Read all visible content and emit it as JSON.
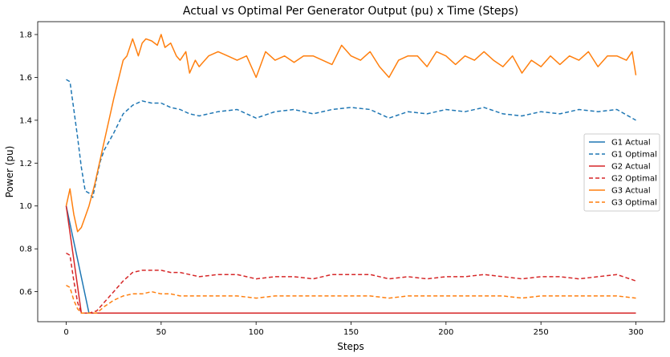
{
  "chart_data": {
    "type": "line",
    "title": "Actual vs Optimal Per Generator Output (pu) x Time (Steps)",
    "xlabel": "Steps",
    "ylabel": "Power (pu)",
    "xlim": [
      -15,
      315
    ],
    "ylim": [
      0.46,
      1.86
    ],
    "xticks": [
      0,
      50,
      100,
      150,
      200,
      250,
      300
    ],
    "yticks": [
      0.6,
      0.8,
      1.0,
      1.2,
      1.4,
      1.6,
      1.8
    ],
    "xtick_labels": [
      "0",
      "50",
      "100",
      "150",
      "200",
      "250",
      "300"
    ],
    "ytick_labels": [
      "0.6",
      "0.8",
      "1.0",
      "1.2",
      "1.4",
      "1.6",
      "1.8"
    ],
    "grid": false,
    "legend_position": "right",
    "series": [
      {
        "name": "G1 Actual",
        "color": "#1f77b4",
        "style": "solid",
        "x": [
          0,
          12,
          300
        ],
        "y": [
          1.0,
          0.5,
          0.5
        ]
      },
      {
        "name": "G1 Optimal",
        "color": "#1f77b4",
        "style": "dashed",
        "x": [
          0,
          2,
          4,
          6,
          8,
          10,
          12,
          14,
          16,
          18,
          20,
          25,
          30,
          35,
          40,
          45,
          50,
          55,
          60,
          65,
          70,
          80,
          90,
          100,
          110,
          120,
          130,
          140,
          150,
          160,
          170,
          180,
          190,
          200,
          210,
          220,
          230,
          240,
          250,
          260,
          270,
          280,
          290,
          300
        ],
        "y": [
          1.59,
          1.58,
          1.45,
          1.32,
          1.18,
          1.07,
          1.06,
          1.04,
          1.13,
          1.21,
          1.26,
          1.34,
          1.43,
          1.47,
          1.49,
          1.48,
          1.48,
          1.46,
          1.45,
          1.43,
          1.42,
          1.44,
          1.45,
          1.41,
          1.44,
          1.45,
          1.43,
          1.45,
          1.46,
          1.45,
          1.41,
          1.44,
          1.43,
          1.45,
          1.44,
          1.46,
          1.43,
          1.42,
          1.44,
          1.43,
          1.45,
          1.44,
          1.45,
          1.4
        ]
      },
      {
        "name": "G2 Actual",
        "color": "#d62728",
        "style": "solid",
        "x": [
          0,
          8,
          300
        ],
        "y": [
          1.0,
          0.5,
          0.5
        ]
      },
      {
        "name": "G2 Optimal",
        "color": "#d62728",
        "style": "dashed",
        "x": [
          0,
          2,
          4,
          6,
          8,
          12,
          16,
          20,
          25,
          30,
          35,
          40,
          45,
          50,
          55,
          60,
          70,
          80,
          90,
          100,
          110,
          120,
          130,
          140,
          150,
          160,
          170,
          180,
          190,
          200,
          210,
          220,
          230,
          240,
          250,
          260,
          270,
          280,
          290,
          300
        ],
        "y": [
          0.78,
          0.77,
          0.65,
          0.55,
          0.5,
          0.5,
          0.51,
          0.55,
          0.6,
          0.65,
          0.69,
          0.7,
          0.7,
          0.7,
          0.69,
          0.69,
          0.67,
          0.68,
          0.68,
          0.66,
          0.67,
          0.67,
          0.66,
          0.68,
          0.68,
          0.68,
          0.66,
          0.67,
          0.66,
          0.67,
          0.67,
          0.68,
          0.67,
          0.66,
          0.67,
          0.67,
          0.66,
          0.67,
          0.68,
          0.65
        ]
      },
      {
        "name": "G3 Actual",
        "color": "#ff7f0e",
        "style": "solid",
        "x": [
          0,
          2,
          4,
          6,
          8,
          10,
          12,
          15,
          20,
          25,
          30,
          32,
          35,
          38,
          40,
          42,
          45,
          48,
          50,
          52,
          55,
          58,
          60,
          63,
          65,
          68,
          70,
          75,
          80,
          85,
          90,
          95,
          100,
          105,
          110,
          115,
          120,
          125,
          130,
          135,
          140,
          145,
          150,
          155,
          160,
          165,
          170,
          175,
          180,
          185,
          190,
          195,
          200,
          205,
          210,
          215,
          220,
          225,
          230,
          235,
          240,
          245,
          250,
          255,
          260,
          265,
          270,
          275,
          280,
          285,
          290,
          295,
          298,
          300
        ],
        "y": [
          1.0,
          1.08,
          0.96,
          0.88,
          0.9,
          0.95,
          1.0,
          1.1,
          1.3,
          1.5,
          1.68,
          1.7,
          1.78,
          1.7,
          1.76,
          1.78,
          1.77,
          1.75,
          1.8,
          1.74,
          1.76,
          1.7,
          1.68,
          1.72,
          1.62,
          1.68,
          1.65,
          1.7,
          1.72,
          1.7,
          1.68,
          1.7,
          1.6,
          1.72,
          1.68,
          1.7,
          1.67,
          1.7,
          1.7,
          1.68,
          1.66,
          1.75,
          1.7,
          1.68,
          1.72,
          1.65,
          1.6,
          1.68,
          1.7,
          1.7,
          1.65,
          1.72,
          1.7,
          1.66,
          1.7,
          1.68,
          1.72,
          1.68,
          1.65,
          1.7,
          1.62,
          1.68,
          1.65,
          1.7,
          1.66,
          1.7,
          1.68,
          1.72,
          1.65,
          1.7,
          1.7,
          1.68,
          1.72,
          1.61
        ]
      },
      {
        "name": "G3 Optimal",
        "color": "#ff7f0e",
        "style": "dashed",
        "x": [
          0,
          2,
          4,
          6,
          8,
          12,
          16,
          20,
          25,
          30,
          35,
          40,
          45,
          50,
          55,
          60,
          70,
          80,
          90,
          100,
          110,
          120,
          130,
          140,
          150,
          160,
          170,
          180,
          190,
          200,
          210,
          220,
          230,
          240,
          250,
          260,
          270,
          280,
          290,
          300
        ],
        "y": [
          0.63,
          0.62,
          0.56,
          0.52,
          0.5,
          0.5,
          0.5,
          0.53,
          0.56,
          0.58,
          0.59,
          0.59,
          0.6,
          0.59,
          0.59,
          0.58,
          0.58,
          0.58,
          0.58,
          0.57,
          0.58,
          0.58,
          0.58,
          0.58,
          0.58,
          0.58,
          0.57,
          0.58,
          0.58,
          0.58,
          0.58,
          0.58,
          0.58,
          0.57,
          0.58,
          0.58,
          0.58,
          0.58,
          0.58,
          0.57
        ]
      }
    ]
  }
}
